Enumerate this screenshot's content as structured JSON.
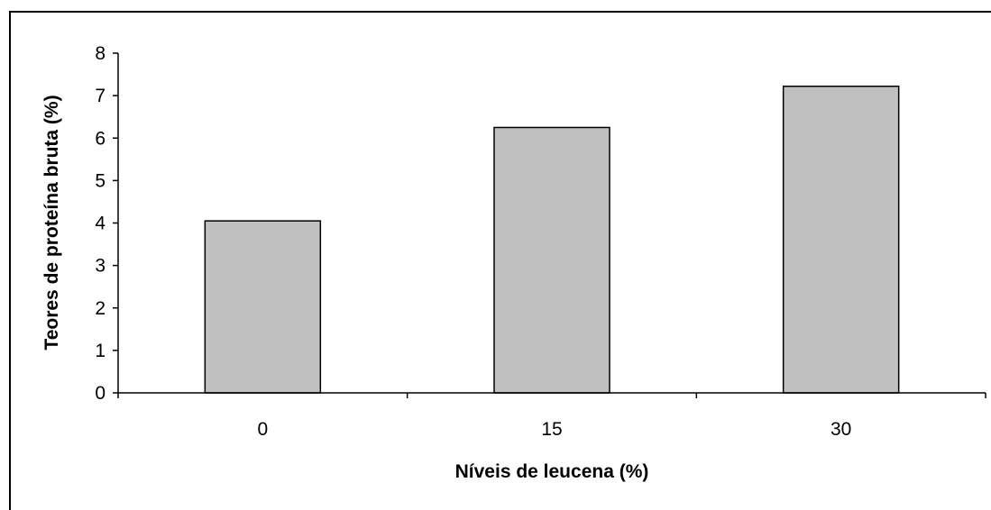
{
  "chart_data": {
    "type": "bar",
    "categories": [
      "0",
      "15",
      "30"
    ],
    "values": [
      4.05,
      6.25,
      7.22
    ],
    "xlabel": "Níveis de leucena (%)",
    "ylabel": "Teores de proteína bruta (%)",
    "ylim": [
      0,
      8
    ],
    "yticks": [
      "0",
      "1",
      "2",
      "3",
      "4",
      "5",
      "6",
      "7",
      "8"
    ],
    "grid": false,
    "legend": "none",
    "colors": {
      "bar_fill": "#c0c0c0",
      "bar_stroke": "#000000"
    }
  }
}
